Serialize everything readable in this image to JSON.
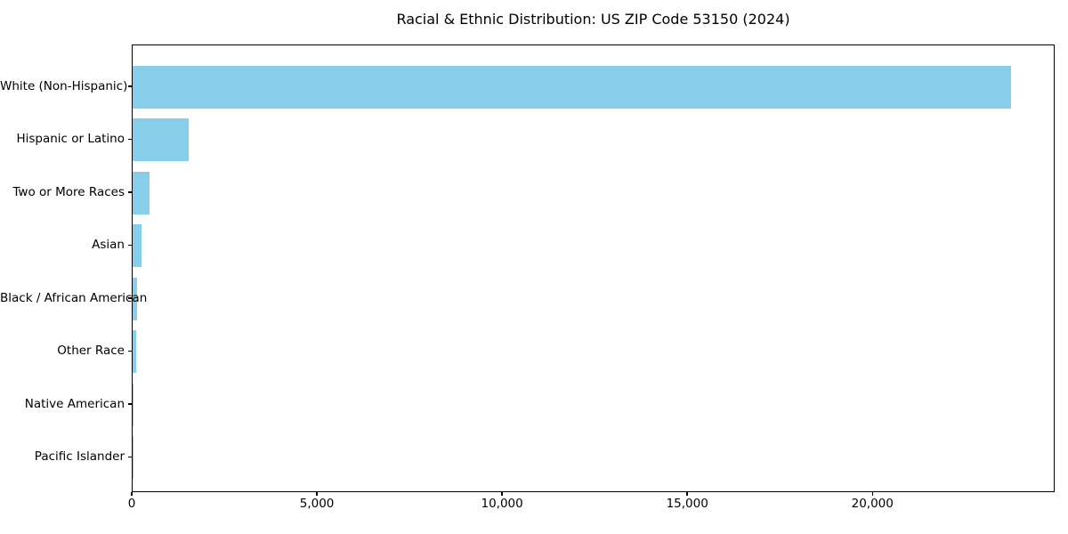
{
  "figure": {
    "background": "#ffffff"
  },
  "chart_data": {
    "type": "bar",
    "orientation": "horizontal",
    "title": "Racial & Ethnic Distribution: US ZIP Code 53150 (2024)",
    "categories": [
      "White (Non-Hispanic)",
      "Hispanic or Latino",
      "Two or More Races",
      "Asian",
      "Black / African American",
      "Other Race",
      "Native American",
      "Pacific Islander"
    ],
    "values": [
      23730,
      1520,
      460,
      230,
      130,
      100,
      35,
      10
    ],
    "bar_color": "#87CEEB",
    "text_color": "#000000",
    "xlabel": "",
    "ylabel": "",
    "xlim": [
      0,
      24920
    ],
    "xticks": [
      0,
      5000,
      10000,
      15000,
      20000
    ],
    "xtick_labels": [
      "0",
      "5,000",
      "10,000",
      "15,000",
      "20,000"
    ],
    "grid": false,
    "legend": false,
    "frame": true
  }
}
